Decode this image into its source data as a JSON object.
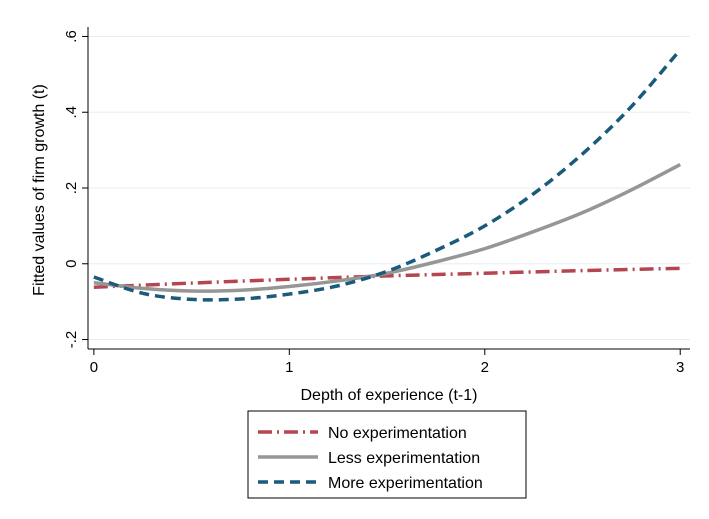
{
  "chart_data": {
    "type": "line",
    "title": "",
    "xlabel": "Depth of experience (t-1)",
    "ylabel": "Fitted values of firm growth (t)",
    "xlim": [
      -0.03,
      3.05
    ],
    "ylim": [
      -0.225,
      0.625
    ],
    "x_ticks": [
      0,
      1,
      2,
      3
    ],
    "x_tick_labels": [
      "0",
      "1",
      "2",
      "3"
    ],
    "y_ticks": [
      -0.2,
      0,
      0.2,
      0.4,
      0.6
    ],
    "y_tick_labels": [
      "-.2",
      "0",
      ".2",
      ".4",
      ".6"
    ],
    "grid": "horizontal",
    "legend_position": "bottom",
    "series": [
      {
        "name": "No experimentation",
        "color": "#b5454f",
        "style": "dash-dot",
        "x": [
          0,
          0.5,
          1,
          1.5,
          2,
          2.5,
          3
        ],
        "y": [
          -0.062,
          -0.051,
          -0.041,
          -0.032,
          -0.025,
          -0.018,
          -0.012
        ]
      },
      {
        "name": "Less experimentation",
        "color": "#969696",
        "style": "solid",
        "x": [
          0,
          0.25,
          0.5,
          0.75,
          1,
          1.25,
          1.5,
          1.75,
          2,
          2.25,
          2.5,
          2.75,
          3
        ],
        "y": [
          -0.05,
          -0.065,
          -0.072,
          -0.07,
          -0.06,
          -0.045,
          -0.025,
          0.005,
          0.04,
          0.085,
          0.135,
          0.195,
          0.262
        ]
      },
      {
        "name": "More experimentation",
        "color": "#1a5a7a",
        "style": "dash",
        "x": [
          0,
          0.25,
          0.5,
          0.75,
          1,
          1.25,
          1.5,
          1.75,
          2,
          2.25,
          2.5,
          2.75,
          3
        ],
        "y": [
          -0.035,
          -0.078,
          -0.094,
          -0.093,
          -0.08,
          -0.058,
          -0.02,
          0.035,
          0.1,
          0.185,
          0.29,
          0.415,
          0.565
        ]
      }
    ]
  }
}
